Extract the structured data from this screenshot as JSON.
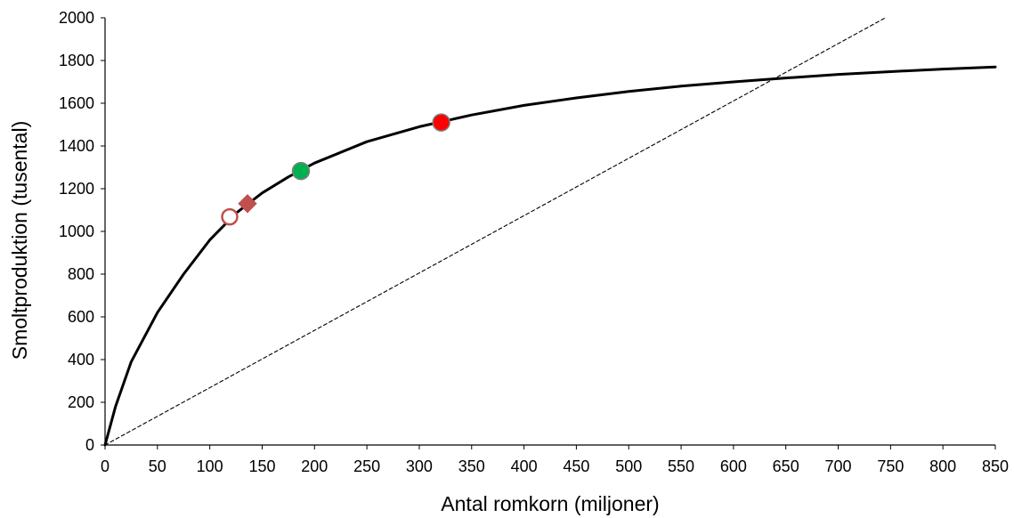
{
  "chart_data": {
    "type": "scatter",
    "title": "",
    "xlabel": "Antal romkorn (miljoner)",
    "ylabel": "Smoltproduktion (tusental)",
    "xlim": [
      0,
      850
    ],
    "ylim": [
      0,
      2000
    ],
    "x_ticks": [
      0,
      50,
      100,
      150,
      200,
      250,
      300,
      350,
      400,
      450,
      500,
      550,
      600,
      650,
      700,
      750,
      800,
      850
    ],
    "y_ticks": [
      0,
      200,
      400,
      600,
      800,
      1000,
      1200,
      1400,
      1600,
      1800,
      2000
    ],
    "grid": false,
    "legend": "none",
    "curves": [
      {
        "kind": "stock-recruitment",
        "style": "solid",
        "color": "#000000",
        "x": [
          0,
          10,
          25,
          50,
          75,
          100,
          125,
          150,
          175,
          200,
          250,
          300,
          350,
          400,
          450,
          500,
          550,
          600,
          650,
          700,
          750,
          800,
          850
        ],
        "y": [
          0,
          180,
          390,
          620,
          800,
          960,
          1085,
          1180,
          1255,
          1320,
          1420,
          1490,
          1545,
          1590,
          1625,
          1655,
          1680,
          1700,
          1718,
          1735,
          1748,
          1760,
          1770
        ]
      },
      {
        "kind": "replacement-line",
        "style": "dashed",
        "color": "#000000",
        "x": [
          0,
          745
        ],
        "y": [
          0,
          2000
        ]
      }
    ],
    "points": [
      {
        "x": 119,
        "y": 1068,
        "marker": "circle-open",
        "color": "#c0504d"
      },
      {
        "x": 136,
        "y": 1130,
        "marker": "diamond",
        "color": "#c0504d"
      },
      {
        "x": 187,
        "y": 1283,
        "marker": "circle",
        "color": "#00b050"
      },
      {
        "x": 321,
        "y": 1510,
        "marker": "circle",
        "color": "#ff0000"
      }
    ]
  }
}
